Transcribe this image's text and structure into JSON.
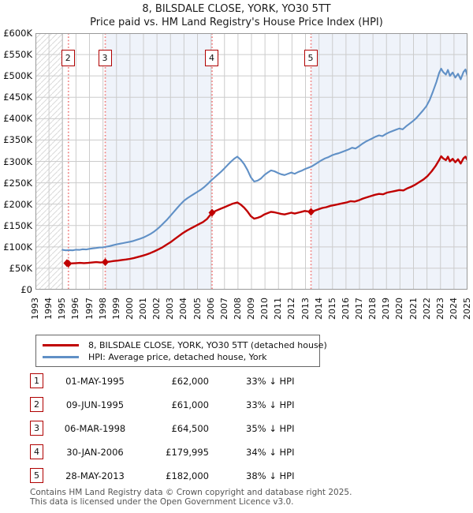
{
  "title": {
    "line1": "8, BILSDALE CLOSE, YORK, YO30 5TT",
    "line2": "Price paid vs. HM Land Registry's House Price Index (HPI)"
  },
  "colors": {
    "property_line": "#c00000",
    "hpi_line": "#6090c6",
    "sale_dotted_line": "#f08080",
    "shaded_band": "#eff3fa",
    "grid": "#cccccc",
    "hatch": "#d9d9d9",
    "plot_border": "#999999",
    "flag_border": "#b00000",
    "footer_text": "#555555"
  },
  "chart_data": {
    "type": "line",
    "title": "8, BILSDALE CLOSE, YORK, YO30 5TT",
    "subtitle": "Price paid vs. HM Land Registry's House Price Index (HPI)",
    "values_unit": "GBP thousands",
    "x_axis": {
      "min": 1993,
      "max": 2025,
      "tick_years": [
        1993,
        1994,
        1995,
        1996,
        1997,
        1998,
        1999,
        2000,
        2001,
        2002,
        2003,
        2004,
        2005,
        2006,
        2007,
        2008,
        2009,
        2010,
        2011,
        2012,
        2013,
        2014,
        2015,
        2016,
        2017,
        2018,
        2019,
        2020,
        2021,
        2022,
        2023,
        2024,
        2025
      ]
    },
    "y_axis": {
      "min_k": 0,
      "max_k": 600,
      "step_k": 50,
      "labels": [
        "£0",
        "£50K",
        "£100K",
        "£150K",
        "£200K",
        "£250K",
        "£300K",
        "£350K",
        "£400K",
        "£450K",
        "£500K",
        "£550K",
        "£600K"
      ]
    },
    "grid": true,
    "hatch_until": 1995,
    "shaded_bands": [
      {
        "from": 1998.17,
        "to": 2006.08
      },
      {
        "from": 2013.41,
        "to": 2025
      }
    ],
    "sale_flags": [
      {
        "label": "2",
        "year": 1995.44
      },
      {
        "label": "3",
        "year": 1998.17
      },
      {
        "label": "4",
        "year": 2006.08
      },
      {
        "label": "5",
        "year": 2013.41
      }
    ],
    "sale_points": [
      [
        1995.33,
        62
      ],
      [
        1995.44,
        61
      ],
      [
        1998.17,
        64.5
      ],
      [
        2006.08,
        180
      ],
      [
        2013.41,
        182
      ]
    ],
    "series": [
      {
        "name": "HPI: Average price, detached house, York",
        "color": "#6090c6",
        "width": 2.1,
        "points": [
          [
            1995.0,
            93
          ],
          [
            1995.25,
            92
          ],
          [
            1995.5,
            92.5
          ],
          [
            1995.75,
            92
          ],
          [
            1996.0,
            93.5
          ],
          [
            1996.25,
            93
          ],
          [
            1996.5,
            94.5
          ],
          [
            1996.75,
            94
          ],
          [
            1997.0,
            95.5
          ],
          [
            1997.25,
            96.5
          ],
          [
            1997.5,
            97.5
          ],
          [
            1997.75,
            98.5
          ],
          [
            1998.0,
            99
          ],
          [
            1998.25,
            100.5
          ],
          [
            1998.5,
            102
          ],
          [
            1998.75,
            104
          ],
          [
            1999.0,
            106
          ],
          [
            1999.25,
            107.5
          ],
          [
            1999.5,
            109
          ],
          [
            1999.75,
            110.5
          ],
          [
            2000.0,
            112
          ],
          [
            2000.25,
            114
          ],
          [
            2000.5,
            116.5
          ],
          [
            2000.75,
            119
          ],
          [
            2001.0,
            122
          ],
          [
            2001.25,
            126
          ],
          [
            2001.5,
            130
          ],
          [
            2001.75,
            135
          ],
          [
            2002.0,
            141
          ],
          [
            2002.25,
            148
          ],
          [
            2002.5,
            156
          ],
          [
            2002.75,
            164
          ],
          [
            2003.0,
            173
          ],
          [
            2003.25,
            182
          ],
          [
            2003.5,
            191
          ],
          [
            2003.75,
            200
          ],
          [
            2004.0,
            208
          ],
          [
            2004.25,
            214
          ],
          [
            2004.5,
            219
          ],
          [
            2004.75,
            224
          ],
          [
            2005.0,
            229
          ],
          [
            2005.25,
            234
          ],
          [
            2005.5,
            240
          ],
          [
            2005.75,
            247
          ],
          [
            2006.0,
            255
          ],
          [
            2006.25,
            262
          ],
          [
            2006.5,
            269
          ],
          [
            2006.75,
            276
          ],
          [
            2007.0,
            284
          ],
          [
            2007.25,
            292
          ],
          [
            2007.5,
            300
          ],
          [
            2007.75,
            307
          ],
          [
            2007.95,
            311
          ],
          [
            2008.2,
            304
          ],
          [
            2008.45,
            294
          ],
          [
            2008.7,
            280
          ],
          [
            2008.95,
            263
          ],
          [
            2009.2,
            253
          ],
          [
            2009.45,
            255
          ],
          [
            2009.7,
            260
          ],
          [
            2009.95,
            268
          ],
          [
            2010.2,
            274
          ],
          [
            2010.45,
            279
          ],
          [
            2010.7,
            277
          ],
          [
            2010.95,
            273
          ],
          [
            2011.2,
            270
          ],
          [
            2011.45,
            268
          ],
          [
            2011.7,
            271
          ],
          [
            2011.95,
            274
          ],
          [
            2012.2,
            271
          ],
          [
            2012.45,
            275
          ],
          [
            2012.7,
            278
          ],
          [
            2012.95,
            282
          ],
          [
            2013.2,
            285
          ],
          [
            2013.45,
            288
          ],
          [
            2013.7,
            293
          ],
          [
            2013.95,
            298
          ],
          [
            2014.2,
            303
          ],
          [
            2014.45,
            307
          ],
          [
            2014.7,
            310
          ],
          [
            2014.95,
            314
          ],
          [
            2015.2,
            317
          ],
          [
            2015.45,
            319
          ],
          [
            2015.7,
            322
          ],
          [
            2015.95,
            325
          ],
          [
            2016.2,
            328
          ],
          [
            2016.45,
            332
          ],
          [
            2016.7,
            330
          ],
          [
            2016.95,
            335
          ],
          [
            2017.2,
            341
          ],
          [
            2017.45,
            346
          ],
          [
            2017.7,
            350
          ],
          [
            2017.95,
            354
          ],
          [
            2018.2,
            358
          ],
          [
            2018.45,
            361
          ],
          [
            2018.7,
            359
          ],
          [
            2018.95,
            364
          ],
          [
            2019.2,
            368
          ],
          [
            2019.45,
            371
          ],
          [
            2019.7,
            374
          ],
          [
            2019.95,
            377
          ],
          [
            2020.2,
            375
          ],
          [
            2020.45,
            382
          ],
          [
            2020.7,
            388
          ],
          [
            2020.95,
            394
          ],
          [
            2021.2,
            401
          ],
          [
            2021.45,
            410
          ],
          [
            2021.7,
            419
          ],
          [
            2021.95,
            429
          ],
          [
            2022.2,
            444
          ],
          [
            2022.45,
            464
          ],
          [
            2022.7,
            486
          ],
          [
            2022.9,
            507
          ],
          [
            2023.05,
            517
          ],
          [
            2023.2,
            509
          ],
          [
            2023.4,
            503
          ],
          [
            2023.55,
            514
          ],
          [
            2023.7,
            500
          ],
          [
            2023.9,
            508
          ],
          [
            2024.1,
            496
          ],
          [
            2024.3,
            505
          ],
          [
            2024.5,
            492
          ],
          [
            2024.7,
            509
          ],
          [
            2024.85,
            515
          ],
          [
            2025.0,
            500
          ]
        ]
      },
      {
        "name": "8, BILSDALE CLOSE, YORK, YO30 5TT (detached house)",
        "color": "#c00000",
        "width": 2.4,
        "points": [
          [
            1995.33,
            62
          ],
          [
            1995.44,
            61
          ],
          [
            1995.7,
            61.5
          ],
          [
            1996.0,
            62
          ],
          [
            1996.3,
            62.5
          ],
          [
            1996.6,
            62
          ],
          [
            1996.9,
            62.5
          ],
          [
            1997.2,
            63.5
          ],
          [
            1997.5,
            64.5
          ],
          [
            1997.8,
            63.5
          ],
          [
            1998.0,
            64
          ],
          [
            1998.17,
            64.5
          ],
          [
            1998.5,
            65.5
          ],
          [
            1998.8,
            67
          ],
          [
            1999.1,
            68
          ],
          [
            1999.4,
            69.5
          ],
          [
            1999.7,
            70.5
          ],
          [
            2000.0,
            72
          ],
          [
            2000.3,
            74
          ],
          [
            2000.6,
            76.5
          ],
          [
            2000.9,
            79
          ],
          [
            2001.2,
            82
          ],
          [
            2001.5,
            85.5
          ],
          [
            2001.8,
            89.5
          ],
          [
            2002.1,
            94
          ],
          [
            2002.4,
            99
          ],
          [
            2002.7,
            105
          ],
          [
            2003.0,
            111
          ],
          [
            2003.3,
            118
          ],
          [
            2003.6,
            125
          ],
          [
            2003.9,
            132
          ],
          [
            2004.2,
            138
          ],
          [
            2004.5,
            143
          ],
          [
            2004.8,
            148
          ],
          [
            2005.1,
            153
          ],
          [
            2005.4,
            158
          ],
          [
            2005.7,
            165
          ],
          [
            2006.08,
            180
          ],
          [
            2006.4,
            185
          ],
          [
            2006.7,
            189
          ],
          [
            2007.0,
            193
          ],
          [
            2007.3,
            197
          ],
          [
            2007.6,
            201
          ],
          [
            2007.95,
            204
          ],
          [
            2008.2,
            199
          ],
          [
            2008.45,
            192
          ],
          [
            2008.7,
            183
          ],
          [
            2008.95,
            172
          ],
          [
            2009.2,
            166
          ],
          [
            2009.45,
            168
          ],
          [
            2009.7,
            171
          ],
          [
            2009.95,
            176
          ],
          [
            2010.2,
            179
          ],
          [
            2010.45,
            182
          ],
          [
            2010.7,
            181
          ],
          [
            2010.95,
            179
          ],
          [
            2011.2,
            177
          ],
          [
            2011.45,
            176
          ],
          [
            2011.7,
            178
          ],
          [
            2011.95,
            180
          ],
          [
            2012.2,
            178
          ],
          [
            2012.45,
            180
          ],
          [
            2012.7,
            182
          ],
          [
            2012.95,
            184
          ],
          [
            2013.2,
            183
          ],
          [
            2013.41,
            182
          ],
          [
            2013.7,
            185
          ],
          [
            2013.95,
            188
          ],
          [
            2014.25,
            191
          ],
          [
            2014.55,
            193
          ],
          [
            2014.85,
            196
          ],
          [
            2015.15,
            198
          ],
          [
            2015.45,
            200
          ],
          [
            2015.75,
            202
          ],
          [
            2016.05,
            204
          ],
          [
            2016.35,
            207
          ],
          [
            2016.65,
            206
          ],
          [
            2016.95,
            209
          ],
          [
            2017.25,
            213
          ],
          [
            2017.55,
            216
          ],
          [
            2017.85,
            219
          ],
          [
            2018.15,
            222
          ],
          [
            2018.45,
            224
          ],
          [
            2018.75,
            223
          ],
          [
            2019.05,
            227
          ],
          [
            2019.35,
            229
          ],
          [
            2019.65,
            231
          ],
          [
            2019.95,
            233
          ],
          [
            2020.25,
            232
          ],
          [
            2020.55,
            237
          ],
          [
            2020.85,
            241
          ],
          [
            2021.15,
            246
          ],
          [
            2021.45,
            252
          ],
          [
            2021.75,
            258
          ],
          [
            2022.05,
            266
          ],
          [
            2022.35,
            277
          ],
          [
            2022.65,
            290
          ],
          [
            2022.9,
            303
          ],
          [
            2023.05,
            312
          ],
          [
            2023.2,
            307
          ],
          [
            2023.4,
            303
          ],
          [
            2023.55,
            311
          ],
          [
            2023.7,
            300
          ],
          [
            2023.9,
            306
          ],
          [
            2024.1,
            298
          ],
          [
            2024.3,
            305
          ],
          [
            2024.5,
            295
          ],
          [
            2024.7,
            307
          ],
          [
            2024.85,
            311
          ],
          [
            2025.0,
            303
          ]
        ]
      }
    ]
  },
  "legend": {
    "items": [
      {
        "label": "8, BILSDALE CLOSE, YORK, YO30 5TT (detached house)",
        "color": "#c00000"
      },
      {
        "label": "HPI: Average price, detached house, York",
        "color": "#6090c6"
      }
    ]
  },
  "table": {
    "rows": [
      {
        "num": "1",
        "date": "01-MAY-1995",
        "price": "£62,000",
        "vs_hpi": "33% ↓ HPI"
      },
      {
        "num": "2",
        "date": "09-JUN-1995",
        "price": "£61,000",
        "vs_hpi": "33% ↓ HPI"
      },
      {
        "num": "3",
        "date": "06-MAR-1998",
        "price": "£64,500",
        "vs_hpi": "35% ↓ HPI"
      },
      {
        "num": "4",
        "date": "30-JAN-2006",
        "price": "£179,995",
        "vs_hpi": "34% ↓ HPI"
      },
      {
        "num": "5",
        "date": "28-MAY-2013",
        "price": "£182,000",
        "vs_hpi": "38% ↓ HPI"
      }
    ]
  },
  "footer": {
    "line1": "Contains HM Land Registry data © Crown copyright and database right 2025.",
    "line2": "This data is licensed under the Open Government Licence v3.0."
  }
}
